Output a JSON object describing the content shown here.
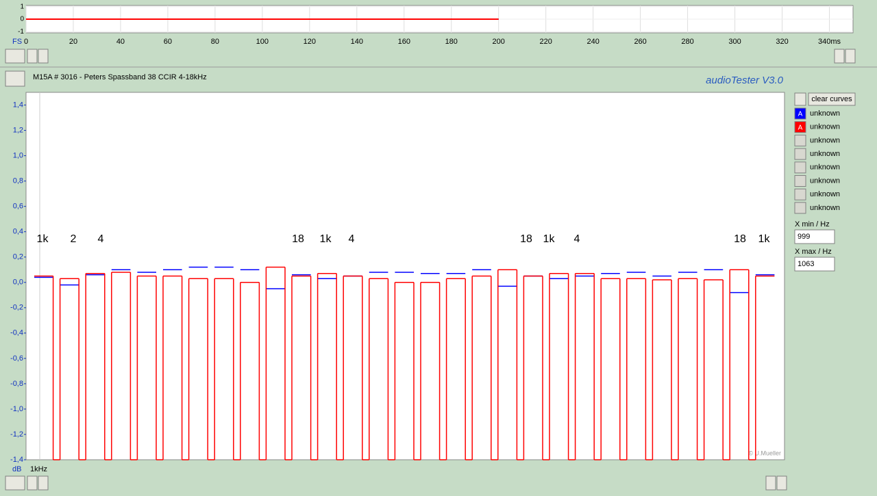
{
  "chart_data": [
    {
      "type": "line",
      "ylabel": "FS",
      "x": [
        0,
        200
      ],
      "series": [
        {
          "color": "#0000ff",
          "values": [
            0,
            0
          ]
        },
        {
          "color": "#ff0000",
          "values": [
            0,
            0
          ]
        }
      ],
      "xlim": [
        0,
        350
      ],
      "xticks": [
        0,
        20,
        40,
        60,
        80,
        100,
        120,
        140,
        160,
        180,
        200,
        220,
        240,
        260,
        280,
        300,
        320,
        {
          "value": 340,
          "label": "340ms"
        }
      ],
      "ylim": [
        -1.1,
        1.1
      ],
      "yticks": [
        1,
        0,
        -1
      ],
      "grid": true
    },
    {
      "type": "step",
      "ylabel": "dB",
      "xlabel": "1kHz",
      "categories": [
        null,
        null,
        null,
        null,
        null,
        null,
        null,
        null,
        null,
        null,
        null,
        null,
        null,
        null,
        null,
        null,
        null,
        null,
        null,
        null,
        null,
        null,
        null,
        null,
        null,
        null,
        null,
        null,
        null,
        null,
        null,
        null,
        null,
        null,
        null,
        null,
        null,
        null,
        null,
        null,
        null,
        null,
        null,
        null,
        null,
        null,
        null,
        null,
        null,
        null,
        null,
        null,
        null,
        null,
        null,
        null,
        null
      ],
      "series": [
        {
          "color": "#0000ff",
          "values": [
            0.04,
            null,
            -0.02,
            null,
            0.06,
            null,
            0.1,
            null,
            0.08,
            null,
            0.1,
            null,
            0.12,
            null,
            0.12,
            null,
            0.1,
            null,
            -0.05,
            null,
            0.06,
            null,
            0.03,
            null,
            0.05,
            null,
            0.08,
            null,
            0.08,
            null,
            0.07,
            null,
            0.07,
            null,
            0.1,
            null,
            -0.03,
            null,
            0.05,
            null,
            0.03,
            null,
            0.05,
            null,
            0.07,
            null,
            0.08,
            null,
            0.05,
            null,
            0.08,
            null,
            0.1,
            null,
            -0.08,
            null,
            0.06
          ]
        },
        {
          "color": "#ff0000",
          "values": [
            0.05,
            -1.4,
            0.03,
            -1.4,
            0.07,
            -1.4,
            0.08,
            -1.4,
            0.05,
            -1.4,
            0.05,
            -1.4,
            0.03,
            -1.4,
            0.03,
            -1.4,
            0.0,
            -1.4,
            0.12,
            -1.4,
            0.05,
            -1.4,
            0.07,
            -1.4,
            0.05,
            -1.4,
            0.03,
            -1.4,
            0.0,
            -1.4,
            0.0,
            -1.4,
            0.03,
            -1.4,
            0.05,
            -1.4,
            0.1,
            -1.4,
            0.05,
            -1.4,
            0.07,
            -1.4,
            0.07,
            -1.4,
            0.03,
            -1.4,
            0.03,
            -1.4,
            0.02,
            -1.4,
            0.03,
            -1.4,
            0.02,
            -1.4,
            0.1,
            -1.4,
            0.05
          ]
        }
      ],
      "ylim": [
        -1.4,
        1.5
      ],
      "yticks": [
        {
          "value": 1.4,
          "label": "1,4"
        },
        {
          "value": 1.2,
          "label": "1,2"
        },
        {
          "value": 1.0,
          "label": "1,0"
        },
        {
          "value": 0.8,
          "label": "0,8"
        },
        {
          "value": 0.6,
          "label": "0,6"
        },
        {
          "value": 0.4,
          "label": "0,4"
        },
        {
          "value": 0.2,
          "label": "0,2"
        },
        {
          "value": 0.0,
          "label": "0,0"
        },
        {
          "value": -0.2,
          "label": "-0,2"
        },
        {
          "value": -0.4,
          "label": "-0,4"
        },
        {
          "value": -0.6,
          "label": "-0,6"
        },
        {
          "value": -0.8,
          "label": "-0,8"
        },
        {
          "value": -1.0,
          "label": "-1,0"
        },
        {
          "value": -1.2,
          "label": "-1,2"
        },
        {
          "value": -1.4,
          "label": "-1,4"
        }
      ],
      "annotations": [
        "1k",
        "2",
        "4",
        "18",
        "1k",
        "4",
        "18",
        "1k",
        "4",
        "18",
        "1k"
      ]
    }
  ],
  "ui": {
    "curve_title": "M15A # 3016 - Peters Spassband 38 CCIR 4-18kHz",
    "brand": "audioTester  V3.0",
    "clear_button": "clear curves",
    "legend": [
      {
        "badge": "A",
        "color": "#0000ff",
        "label": "unknown"
      },
      {
        "badge": "A",
        "color": "#ff0000",
        "label": "unknown"
      },
      {
        "label": "unknown"
      },
      {
        "label": "unknown"
      },
      {
        "label": "unknown"
      },
      {
        "label": "unknown"
      },
      {
        "label": "unknown"
      },
      {
        "label": "unknown"
      }
    ],
    "xmin_label": "X min / Hz",
    "xmin": "999",
    "xmax_label": "X max / Hz",
    "xmax": "1063",
    "copyright": "© U.Mueller"
  }
}
